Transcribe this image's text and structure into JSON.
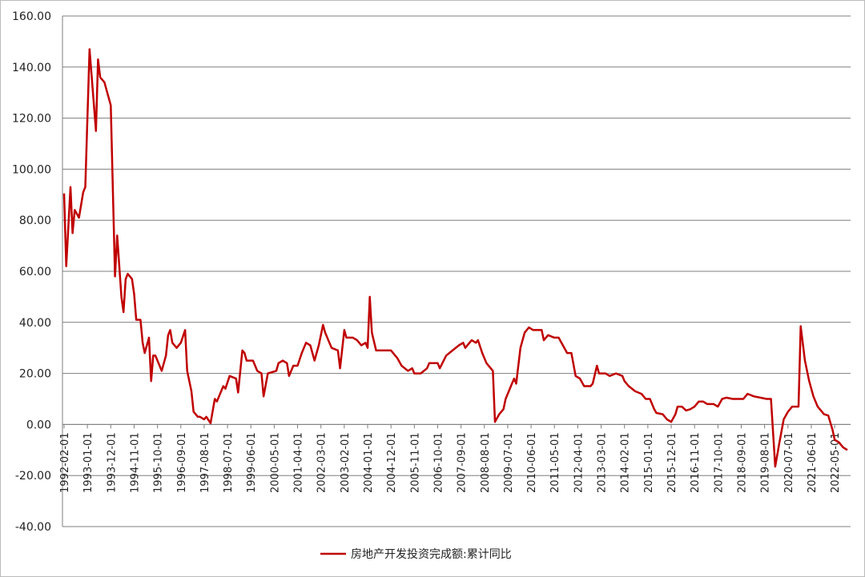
{
  "chart_data": {
    "type": "line",
    "color": "#c00000",
    "ylim": [
      -40,
      160
    ],
    "yticks": [
      {
        "value": -40,
        "label": "-40.00"
      },
      {
        "value": -20,
        "label": "-20.00"
      },
      {
        "value": 0,
        "label": "0.00"
      },
      {
        "value": 20,
        "label": "20.00"
      },
      {
        "value": 40,
        "label": "40.00"
      },
      {
        "value": 60,
        "label": "60.00"
      },
      {
        "value": 80,
        "label": "80.00"
      },
      {
        "value": 100,
        "label": "100.00"
      },
      {
        "value": 120,
        "label": "120.00"
      },
      {
        "value": 140,
        "label": "140.00"
      },
      {
        "value": 160,
        "label": "160.00"
      }
    ],
    "xlim": [
      "1992-02-01",
      "2022-11-01"
    ],
    "xticks": [
      "1992-02-01",
      "1993-01-01",
      "1993-12-01",
      "1994-11-01",
      "1995-10-01",
      "1996-09-01",
      "1997-08-01",
      "1998-07-01",
      "1999-06-01",
      "2000-05-01",
      "2001-04-01",
      "2002-03-01",
      "2003-02-01",
      "2004-01-01",
      "2004-12-01",
      "2005-11-01",
      "2006-10-01",
      "2007-09-01",
      "2008-08-01",
      "2009-07-01",
      "2010-06-01",
      "2011-05-01",
      "2012-04-01",
      "2013-03-01",
      "2014-02-01",
      "2015-01-01",
      "2015-12-01",
      "2016-11-01",
      "2017-10-01",
      "2018-09-01",
      "2019-08-01",
      "2020-07-01",
      "2021-06-01",
      "2022-05-01"
    ],
    "grid": true,
    "series": [
      {
        "name": "房地产开发投资完成额:累计同比",
        "color": "#c00000",
        "x": [
          "1992-02-01",
          "1992-03-01",
          "1992-05-01",
          "1992-06-01",
          "1992-07-01",
          "1992-09-01",
          "1992-11-01",
          "1992-12-01",
          "1993-02-01",
          "1993-05-01",
          "1993-06-01",
          "1993-07-01",
          "1993-09-01",
          "1993-12-01",
          "1994-02-01",
          "1994-03-01",
          "1994-05-01",
          "1994-06-01",
          "1994-07-01",
          "1994-08-01",
          "1994-10-01",
          "1994-11-01",
          "1994-12-01",
          "1995-02-01",
          "1995-03-01",
          "1995-04-01",
          "1995-06-01",
          "1995-07-01",
          "1995-08-01",
          "1995-09-01",
          "1995-12-01",
          "1996-02-01",
          "1996-03-01",
          "1996-04-01",
          "1996-05-01",
          "1996-07-01",
          "1996-09-01",
          "1996-11-01",
          "1996-12-01",
          "1997-02-01",
          "1997-03-01",
          "1997-05-01",
          "1997-06-01",
          "1997-08-01",
          "1997-09-01",
          "1997-11-01",
          "1998-01-01",
          "1998-02-01",
          "1998-05-01",
          "1998-06-01",
          "1998-08-01",
          "1998-11-01",
          "1998-12-01",
          "1999-02-01",
          "1999-03-01",
          "1999-04-01",
          "1999-07-01",
          "1999-09-01",
          "1999-11-01",
          "1999-12-01",
          "2000-02-01",
          "2000-06-01",
          "2000-07-01",
          "2000-09-01",
          "2000-11-01",
          "2000-12-01",
          "2001-02-01",
          "2001-04-01",
          "2001-06-01",
          "2001-08-01",
          "2001-10-01",
          "2001-12-01",
          "2002-02-01",
          "2002-04-01",
          "2002-05-01",
          "2002-07-01",
          "2002-08-01",
          "2002-11-01",
          "2002-12-01",
          "2003-02-01",
          "2003-03-01",
          "2003-06-01",
          "2003-08-01",
          "2003-10-01",
          "2003-12-01",
          "2004-01-01",
          "2004-02-01",
          "2004-03-01",
          "2004-05-01",
          "2004-09-01",
          "2004-12-01",
          "2005-03-01",
          "2005-05-01",
          "2005-08-01",
          "2005-10-01",
          "2005-11-01",
          "2006-02-01",
          "2006-05-01",
          "2006-06-01",
          "2006-10-01",
          "2006-11-01",
          "2007-02-01",
          "2007-05-01",
          "2007-08-01",
          "2007-10-01",
          "2007-11-01",
          "2008-02-01",
          "2008-04-01",
          "2008-05-01",
          "2008-07-01",
          "2008-09-01",
          "2008-12-01",
          "2009-01-01",
          "2009-03-01",
          "2009-05-01",
          "2009-06-01",
          "2009-09-01",
          "2009-10-01",
          "2009-11-01",
          "2010-01-01",
          "2010-03-01",
          "2010-05-01",
          "2010-07-01",
          "2010-09-01",
          "2010-11-01",
          "2010-12-01",
          "2011-02-01",
          "2011-05-01",
          "2011-07-01",
          "2011-09-01",
          "2011-11-01",
          "2012-01-01",
          "2012-03-01",
          "2012-05-01",
          "2012-07-01",
          "2012-10-01",
          "2012-11-01",
          "2013-01-01",
          "2013-02-01",
          "2013-05-01",
          "2013-07-01",
          "2013-10-01",
          "2014-01-01",
          "2014-02-01",
          "2014-04-01",
          "2014-07-01",
          "2014-10-01",
          "2014-12-01",
          "2015-02-01",
          "2015-04-01",
          "2015-05-01",
          "2015-08-01",
          "2015-10-01",
          "2015-12-01",
          "2016-02-01",
          "2016-03-01",
          "2016-05-01",
          "2016-07-01",
          "2016-09-01",
          "2016-11-01",
          "2017-01-01",
          "2017-03-01",
          "2017-05-01",
          "2017-08-01",
          "2017-10-01",
          "2017-12-01",
          "2018-02-01",
          "2018-05-01",
          "2018-06-01",
          "2018-10-01",
          "2018-12-01",
          "2019-03-01",
          "2019-06-01",
          "2019-09-01",
          "2019-11-01",
          "2020-01-01",
          "2020-03-01",
          "2020-05-01",
          "2020-07-01",
          "2020-09-01",
          "2020-12-01",
          "2021-01-01",
          "2021-03-01",
          "2021-05-01",
          "2021-07-01",
          "2021-09-01",
          "2021-12-01",
          "2022-02-01",
          "2022-04-01",
          "2022-05-01",
          "2022-07-01",
          "2022-09-01",
          "2022-11-01"
        ],
        "values": [
          90.5,
          62,
          93,
          75,
          84,
          81,
          91,
          93,
          147,
          115,
          143,
          136,
          134,
          125,
          58,
          74,
          50,
          44,
          57,
          59,
          57,
          51,
          41,
          41,
          32,
          28,
          34,
          17,
          27,
          27,
          21,
          27,
          35,
          37,
          32,
          30,
          32,
          37,
          21,
          13,
          5,
          3,
          3,
          2,
          3,
          0.5,
          10,
          9,
          15,
          14,
          19,
          18,
          12.5,
          29,
          28,
          25,
          25,
          21,
          20,
          11,
          20,
          21,
          24,
          25,
          24,
          19,
          23,
          23,
          28,
          32,
          31,
          25,
          31,
          39,
          36,
          32,
          30,
          29,
          22,
          37,
          34,
          34,
          33,
          31,
          32,
          30,
          50,
          36,
          29,
          29,
          29,
          26,
          23,
          21,
          22,
          20,
          20,
          22,
          24,
          24,
          22,
          27,
          29,
          31,
          32,
          30,
          33,
          32,
          33,
          28,
          24,
          21,
          1,
          4,
          6,
          10,
          16,
          18,
          16,
          30,
          36,
          38,
          37,
          37,
          37,
          33,
          35,
          34,
          34,
          31,
          28,
          28,
          19,
          18,
          15,
          15,
          16,
          23,
          20,
          20,
          19,
          20,
          19,
          17,
          15,
          13,
          12,
          10,
          10,
          6,
          4.5,
          4,
          2,
          1,
          4,
          7,
          7,
          5.5,
          6,
          7,
          9,
          9,
          8,
          8,
          7,
          10,
          10.5,
          10,
          10,
          10,
          12,
          11,
          10.5,
          10,
          10,
          -16.5,
          -7,
          2,
          5,
          7,
          7,
          38.5,
          25,
          17,
          11,
          7,
          4,
          3.5,
          -2,
          -6,
          -7,
          -9,
          -10
        ]
      }
    ]
  }
}
